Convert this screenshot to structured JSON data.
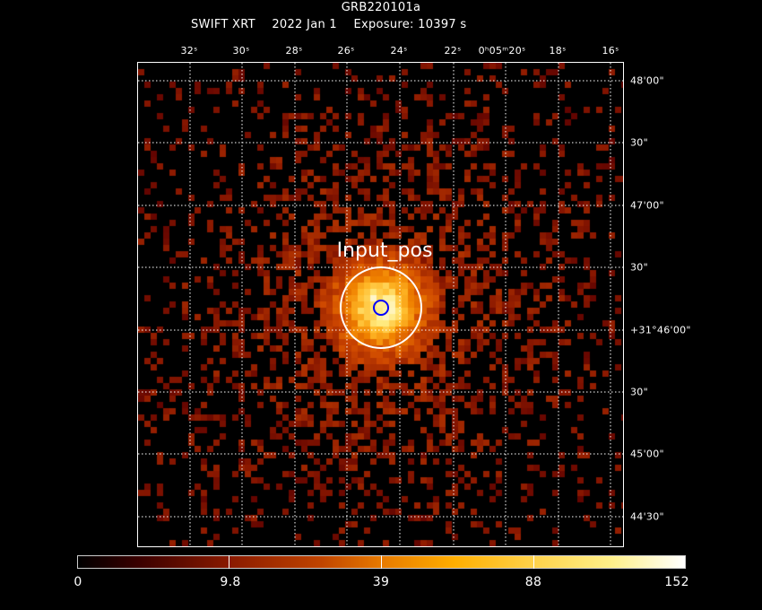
{
  "header": {
    "title": "GRB220101a",
    "instrument": "SWIFT XRT",
    "date": "2022 Jan  1",
    "exposure": "Exposure: 10397 s"
  },
  "ra_ticks": [
    "32ˢ",
    "30ˢ",
    "28ˢ",
    "26ˢ",
    "24ˢ",
    "22ˢ",
    "0ʰ05ᵐ20ˢ",
    "18ˢ",
    "16ˢ"
  ],
  "dec_ticks": [
    "48'00\"",
    "30\"",
    "47'00\"",
    "30\"",
    "+31°46'00\"",
    "30\"",
    "45'00\"",
    "44'30\""
  ],
  "annotation": {
    "label": "Input_pos"
  },
  "colorbar": {
    "labels": [
      "0",
      "9.8",
      "39",
      "88",
      "152"
    ],
    "stops": [
      0,
      9.8,
      39,
      88,
      152
    ],
    "min": 0,
    "max": 152
  },
  "colors": {
    "frame": "#ffffff",
    "grid": "#ffffff",
    "input_circle": "#ffffff",
    "source_circle": "#0000ff"
  }
}
